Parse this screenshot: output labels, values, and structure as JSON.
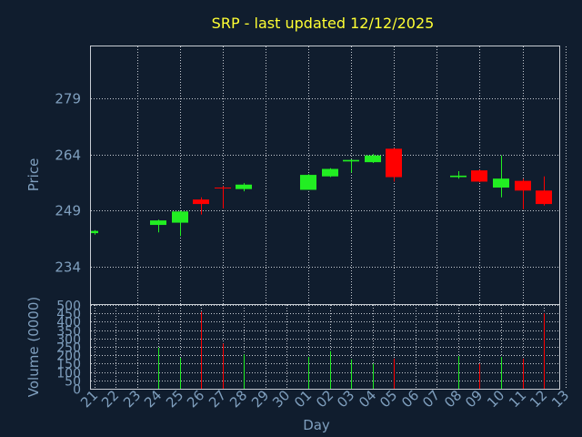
{
  "chart_data": {
    "type": "candlestick",
    "title": "SRP - last updated 12/12/2025",
    "xlabel": "Day",
    "price_panel": {
      "ylabel": "Price",
      "yticks": [
        234,
        249,
        264,
        279
      ],
      "ylim": [
        224,
        293
      ],
      "grid": true
    },
    "volume_panel": {
      "ylabel": "Volume (0000)",
      "yticks": [
        0,
        50,
        100,
        150,
        200,
        250,
        300,
        350,
        400,
        450,
        500
      ],
      "ylim": [
        0,
        500
      ],
      "grid": true
    },
    "x_tick_labels": [
      "21",
      "22",
      "23",
      "24",
      "25",
      "26",
      "27",
      "28",
      "29",
      "30",
      "01",
      "02",
      "03",
      "04",
      "05",
      "06",
      "07",
      "08",
      "09",
      "10",
      "11",
      "12",
      "13"
    ],
    "candles": [
      {
        "day": "21",
        "open": 243.0,
        "high": 243.8,
        "low": 242.6,
        "close": 243.6,
        "volume": 0
      },
      {
        "day": "24",
        "open": 245.2,
        "high": 246.6,
        "low": 243.2,
        "close": 246.4,
        "volume": 245
      },
      {
        "day": "25",
        "open": 245.8,
        "high": 249.0,
        "low": 242.2,
        "close": 248.8,
        "volume": 185
      },
      {
        "day": "26",
        "open": 252.0,
        "high": 252.6,
        "low": 248.0,
        "close": 250.8,
        "volume": 460
      },
      {
        "day": "27",
        "open": 255.2,
        "high": 255.6,
        "low": 249.6,
        "close": 255.0,
        "volume": 270
      },
      {
        "day": "28",
        "open": 254.8,
        "high": 256.4,
        "low": 254.2,
        "close": 256.0,
        "volume": 205
      },
      {
        "day": "01",
        "open": 254.6,
        "high": 258.8,
        "low": 254.6,
        "close": 258.6,
        "volume": 190
      },
      {
        "day": "02",
        "open": 258.2,
        "high": 260.4,
        "low": 258.0,
        "close": 260.2,
        "volume": 225
      },
      {
        "day": "03",
        "open": 262.2,
        "high": 262.8,
        "low": 259.2,
        "close": 262.6,
        "volume": 175
      },
      {
        "day": "04",
        "open": 262.0,
        "high": 264.2,
        "low": 261.8,
        "close": 263.8,
        "volume": 150
      },
      {
        "day": "05",
        "open": 265.6,
        "high": 265.8,
        "low": 256.8,
        "close": 258.0,
        "volume": 180
      },
      {
        "day": "08",
        "open": 258.0,
        "high": 259.6,
        "low": 257.6,
        "close": 258.4,
        "volume": 195
      },
      {
        "day": "09",
        "open": 259.8,
        "high": 260.0,
        "low": 256.6,
        "close": 256.8,
        "volume": 150
      },
      {
        "day": "10",
        "open": 255.2,
        "high": 263.8,
        "low": 252.6,
        "close": 257.6,
        "volume": 190
      },
      {
        "day": "11",
        "open": 257.0,
        "high": 257.6,
        "low": 249.4,
        "close": 254.4,
        "volume": 180
      },
      {
        "day": "12",
        "open": 254.4,
        "high": 258.2,
        "low": 250.4,
        "close": 250.8,
        "volume": 450
      }
    ],
    "colors": {
      "up": "#22ee22",
      "down": "#ff0000",
      "grid": "#c7ccd3",
      "title": "#ffff33",
      "axis_text": "#7f9fbe",
      "background": "#101d2e"
    }
  }
}
